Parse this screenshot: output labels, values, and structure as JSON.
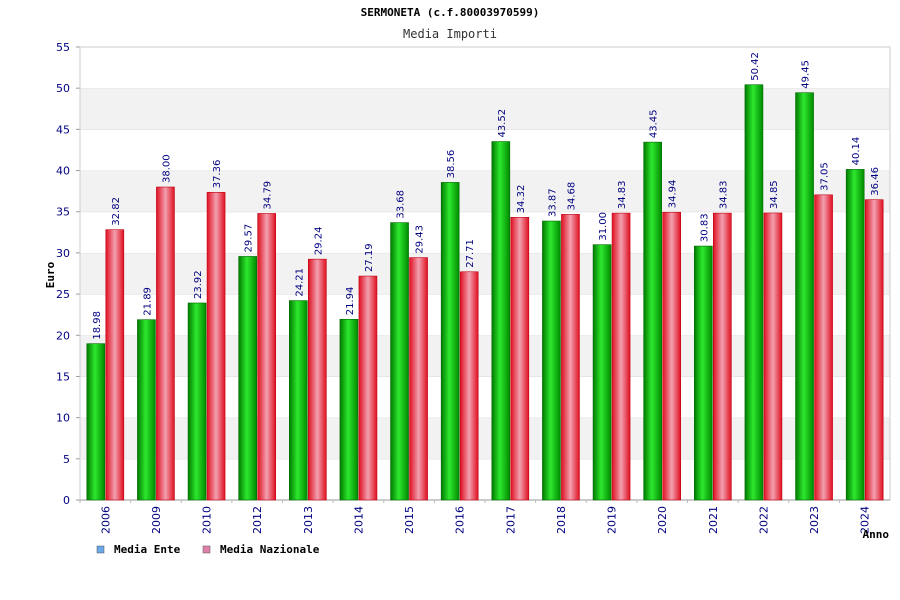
{
  "chart_data": {
    "type": "bar",
    "title": "SERMONETA (c.f.80003970599)",
    "subtitle": "Media Importi",
    "ylabel": "Euro",
    "xlabel": "Anno",
    "ylim": [
      0,
      55
    ],
    "yticks": [
      0,
      5,
      10,
      15,
      20,
      25,
      30,
      35,
      40,
      45,
      50,
      55
    ],
    "grid": "horizontal bands",
    "legend_position": "bottom-left",
    "categories": [
      "2006",
      "2009",
      "2010",
      "2012",
      "2013",
      "2014",
      "2015",
      "2016",
      "2017",
      "2018",
      "2019",
      "2020",
      "2021",
      "2022",
      "2023",
      "2024"
    ],
    "series": [
      {
        "name": "Media Ente",
        "color": "#00b800",
        "legend_color": "#6aa8e8",
        "values": [
          18.98,
          21.89,
          23.92,
          29.57,
          24.21,
          21.94,
          33.68,
          38.56,
          43.52,
          33.87,
          31.0,
          43.45,
          30.83,
          50.42,
          49.45,
          40.14
        ],
        "labels": [
          "18.98",
          "21.89",
          "23.92",
          "29.57",
          "24.21",
          "21.94",
          "33.68",
          "38.56",
          "43.52",
          "33.87",
          "31.00",
          "43.45",
          "30.83",
          "50.42",
          "49.45",
          "40.14"
        ]
      },
      {
        "name": "Media Nazionale",
        "color": "#e8142a",
        "legend_color": "#e080a8",
        "values": [
          32.82,
          38.0,
          37.36,
          34.79,
          29.24,
          27.19,
          29.43,
          27.71,
          34.32,
          34.68,
          34.83,
          34.94,
          34.83,
          34.85,
          37.05,
          36.46
        ],
        "labels": [
          "32.82",
          "38.00",
          "37.36",
          "34.79",
          "29.24",
          "27.19",
          "29.43",
          "27.71",
          "34.32",
          "34.68",
          "34.83",
          "34.94",
          "34.83",
          "34.85",
          "37.05",
          "36.46"
        ]
      }
    ]
  }
}
